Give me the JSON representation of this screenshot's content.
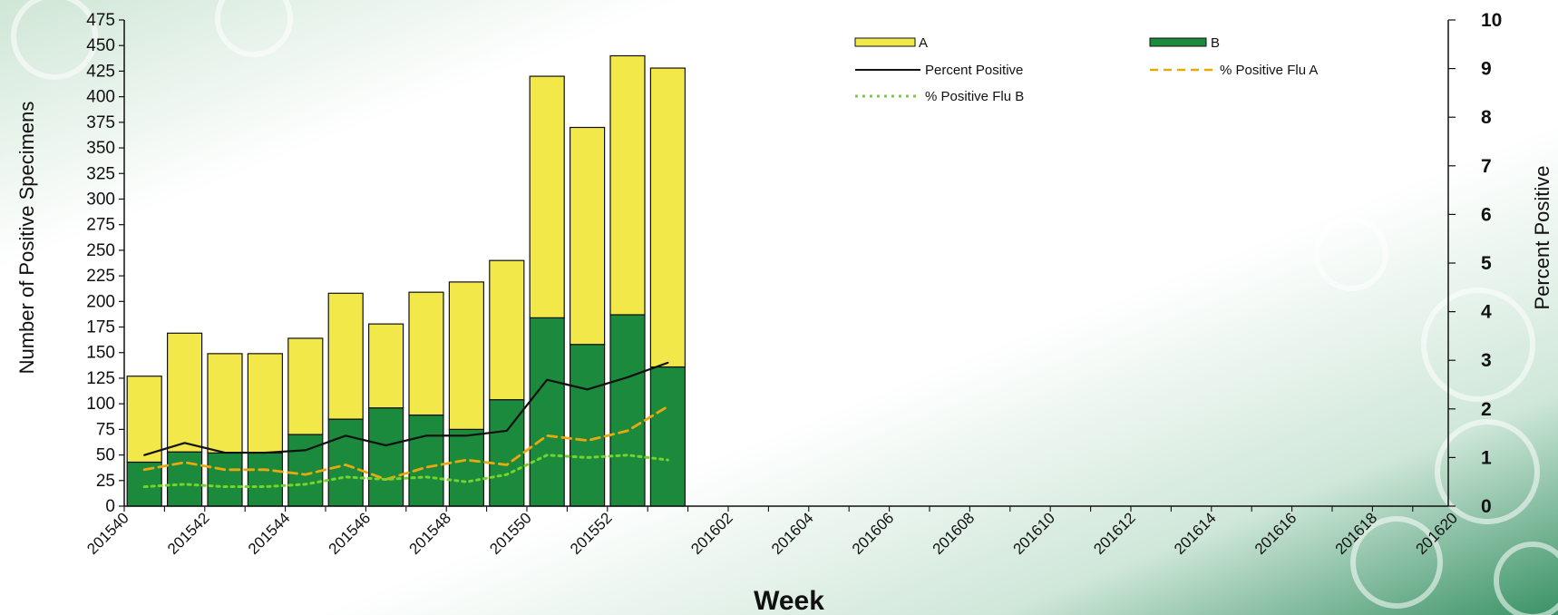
{
  "chart_data": {
    "type": "bar",
    "subtype": "stacked-bar-with-lines",
    "xlabel": "Week",
    "ylabel_left": "Number of Positive Specimens",
    "ylabel_right": "Percent Positive",
    "ylim_left": [
      0,
      475
    ],
    "ylim_right": [
      0,
      10
    ],
    "yticks_left": [
      "0",
      "25",
      "50",
      "75",
      "100",
      "125",
      "150",
      "175",
      "200",
      "225",
      "250",
      "275",
      "300",
      "325",
      "350",
      "375",
      "400",
      "425",
      "450",
      "475"
    ],
    "yticks_right": [
      "0",
      "1",
      "2",
      "3",
      "4",
      "5",
      "6",
      "7",
      "8",
      "9",
      "10"
    ],
    "x_tick_labels": [
      "201540",
      "201542",
      "201544",
      "201546",
      "201548",
      "201550",
      "201552",
      "201602",
      "201604",
      "201606",
      "201608",
      "201610",
      "201612",
      "201614",
      "201616",
      "201618",
      "201620"
    ],
    "weeks": [
      "201540",
      "201541",
      "201542",
      "201543",
      "201544",
      "201545",
      "201546",
      "201547",
      "201548",
      "201549",
      "201550",
      "201551",
      "201552",
      "201553",
      "201601",
      "201602",
      "201603",
      "201604",
      "201605",
      "201606",
      "201607",
      "201608",
      "201609",
      "201610",
      "201611",
      "201612",
      "201613",
      "201614",
      "201615",
      "201616",
      "201617",
      "201618",
      "201619",
      "201620"
    ],
    "series": [
      {
        "name": "A",
        "kind": "bar",
        "color": "#f3e84a",
        "values": [
          84,
          116,
          97,
          97,
          94,
          123,
          82,
          120,
          144,
          136,
          236,
          212,
          253,
          292
        ]
      },
      {
        "name": "B",
        "kind": "bar",
        "color": "#1b8a3c",
        "values": [
          43,
          53,
          52,
          52,
          70,
          85,
          96,
          89,
          75,
          104,
          184,
          158,
          187,
          136
        ]
      },
      {
        "name": "Percent Positive",
        "kind": "line",
        "style": "solid",
        "color": "#111111",
        "values": [
          1.05,
          1.3,
          1.1,
          1.1,
          1.15,
          1.45,
          1.25,
          1.45,
          1.45,
          1.55,
          2.6,
          2.4,
          2.65,
          2.95
        ]
      },
      {
        "name": "% Positive Flu A",
        "kind": "line",
        "style": "dashed",
        "color": "#e8a90f",
        "values": [
          0.75,
          0.9,
          0.75,
          0.75,
          0.65,
          0.85,
          0.55,
          0.8,
          0.95,
          0.85,
          1.45,
          1.35,
          1.55,
          2.05
        ]
      },
      {
        "name": "% Positive Flu B",
        "kind": "line",
        "style": "dotted",
        "color": "#74d42a",
        "values": [
          0.4,
          0.45,
          0.4,
          0.4,
          0.45,
          0.6,
          0.55,
          0.6,
          0.5,
          0.65,
          1.05,
          1.0,
          1.05,
          0.95
        ]
      }
    ],
    "legend": {
      "placement": "top-right",
      "items": [
        "A",
        "B",
        "Percent Positive",
        "% Positive Flu A",
        "% Positive Flu B"
      ]
    },
    "grid": false
  }
}
